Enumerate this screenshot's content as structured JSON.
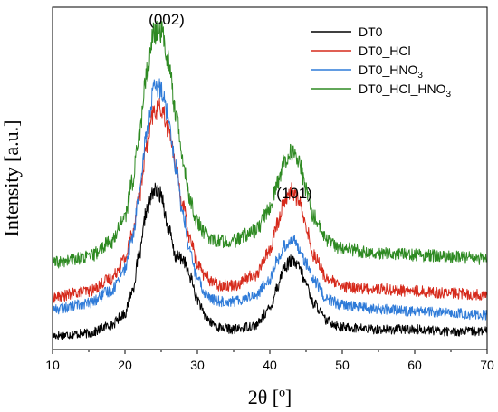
{
  "chart_data": {
    "type": "line",
    "xlabel": "2θ [º]",
    "ylabel": "Intensity [a.u.]",
    "xlim": [
      10,
      70
    ],
    "x_ticks": [
      "10",
      "20",
      "30",
      "40",
      "50",
      "60",
      "70"
    ],
    "y_ticks_shown": false,
    "grid": false,
    "legend_position": "top-right",
    "annotations": [
      {
        "text": "(002)",
        "x": 24.5
      },
      {
        "text": "(101)",
        "x": 43.5
      }
    ],
    "series": [
      {
        "name": "DT0",
        "legend_main": "DT0",
        "legend_sub": "",
        "legend_tail": "",
        "color": "#000000",
        "x": [
          10,
          15,
          18,
          20,
          21,
          22,
          23,
          24,
          25,
          26,
          27,
          28,
          29,
          30,
          31,
          32,
          33,
          35,
          38,
          40,
          41,
          42,
          43,
          44,
          45,
          46,
          48,
          50,
          55,
          60,
          65,
          70
        ],
        "y": [
          0.2,
          0.3,
          0.7,
          1.3,
          2.4,
          4.2,
          6.4,
          7.4,
          7.2,
          5.5,
          4.1,
          4.0,
          3.1,
          2.0,
          1.2,
          0.8,
          0.6,
          0.5,
          0.7,
          1.5,
          2.6,
          3.6,
          3.9,
          3.6,
          2.8,
          1.8,
          0.9,
          0.6,
          0.5,
          0.5,
          0.4,
          0.4
        ]
      },
      {
        "name": "DT0_HCl",
        "legend_main": "DT0_HCl",
        "legend_sub": "",
        "legend_tail": "",
        "color": "#d62a1c",
        "x": [
          10,
          15,
          18,
          20,
          21,
          22,
          23,
          24,
          25,
          26,
          27,
          28,
          29,
          30,
          31,
          32,
          33,
          35,
          38,
          40,
          41,
          42,
          43,
          44,
          45,
          46,
          48,
          50,
          55,
          60,
          65,
          70
        ],
        "y": [
          2.1,
          2.4,
          3.0,
          4.0,
          5.3,
          7.2,
          9.6,
          11.3,
          11.5,
          10.5,
          8.6,
          6.6,
          5.0,
          3.8,
          3.2,
          2.9,
          2.7,
          2.7,
          3.2,
          4.4,
          5.7,
          6.9,
          7.4,
          6.9,
          5.6,
          4.2,
          3.0,
          2.6,
          2.5,
          2.4,
          2.3,
          2.2
        ]
      },
      {
        "name": "DT0_HNO3",
        "legend_main": "DT0_HNO",
        "legend_sub": "3",
        "legend_tail": "",
        "color": "#2f7bd8",
        "x": [
          10,
          15,
          18,
          20,
          21,
          22,
          23,
          24,
          25,
          26,
          27,
          28,
          29,
          30,
          31,
          32,
          33,
          35,
          38,
          40,
          41,
          42,
          43,
          44,
          45,
          46,
          48,
          50,
          55,
          60,
          65,
          70
        ],
        "y": [
          1.5,
          1.8,
          2.4,
          3.5,
          5.0,
          7.2,
          10.3,
          12.4,
          12.5,
          11.1,
          8.6,
          6.2,
          4.3,
          3.0,
          2.3,
          2.0,
          1.9,
          1.9,
          2.2,
          3.0,
          3.9,
          4.6,
          5.0,
          4.6,
          3.8,
          2.9,
          2.0,
          1.7,
          1.5,
          1.4,
          1.3,
          1.2
        ]
      },
      {
        "name": "DT0_HCl_HNO3",
        "legend_main": "DT0_HCl_HNO",
        "legend_sub": "3",
        "legend_tail": "",
        "color": "#2e8a22",
        "x": [
          10,
          15,
          18,
          20,
          21,
          22,
          23,
          24,
          25,
          26,
          27,
          28,
          29,
          30,
          31,
          32,
          33,
          35,
          38,
          40,
          41,
          42,
          43,
          44,
          45,
          46,
          48,
          50,
          55,
          60,
          65,
          70
        ],
        "y": [
          3.8,
          4.1,
          4.8,
          6.1,
          7.8,
          10.3,
          13.2,
          15.2,
          15.3,
          13.9,
          11.3,
          8.8,
          6.9,
          5.8,
          5.3,
          5.0,
          4.9,
          4.9,
          5.4,
          6.5,
          7.7,
          8.8,
          9.3,
          8.8,
          7.5,
          6.1,
          4.9,
          4.5,
          4.3,
          4.2,
          4.1,
          4.0
        ]
      }
    ]
  }
}
